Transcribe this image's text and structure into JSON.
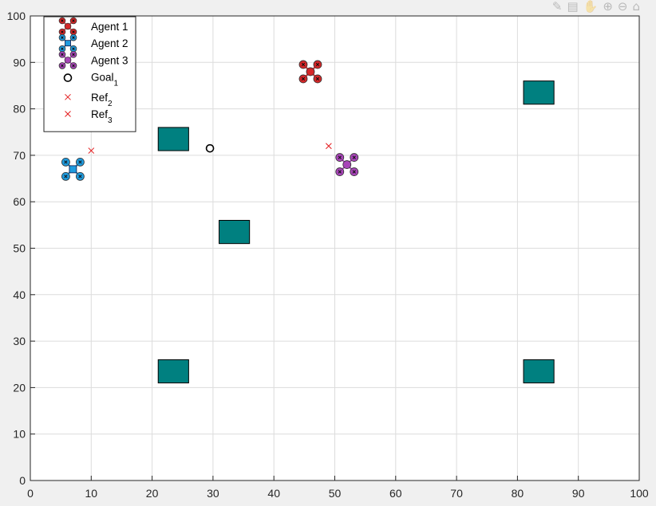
{
  "toolbar": {
    "icons": [
      "brush-icon",
      "data-tips-icon",
      "pan-icon",
      "zoom-in-icon",
      "zoom-out-icon",
      "home-icon"
    ]
  },
  "chart_data": {
    "type": "scatter",
    "title": "",
    "xlabel": "",
    "ylabel": "",
    "xlim": [
      0,
      100
    ],
    "ylim": [
      0,
      100
    ],
    "xticks": [
      0,
      10,
      20,
      30,
      40,
      50,
      60,
      70,
      80,
      90,
      100
    ],
    "yticks": [
      0,
      10,
      20,
      30,
      40,
      50,
      60,
      70,
      80,
      90,
      100
    ],
    "grid": true,
    "legend_location": "top-left",
    "agents": [
      {
        "name": "Agent 1",
        "x": 46,
        "y": 88,
        "color": "#d62728",
        "marker": "quad-x"
      },
      {
        "name": "Agent 2",
        "x": 7,
        "y": 67,
        "color": "#1f9bde",
        "marker": "quad-square"
      },
      {
        "name": "Agent 3",
        "x": 52,
        "y": 68,
        "color": "#a845b8",
        "marker": "quad-x"
      }
    ],
    "goals": [
      {
        "name": "Goal",
        "sub": "1",
        "x": 29.5,
        "y": 71.5
      }
    ],
    "refs": [
      {
        "name": "Ref",
        "sub": "2",
        "x": 10,
        "y": 71
      },
      {
        "name": "Ref",
        "sub": "3",
        "x": 49,
        "y": 72
      }
    ],
    "obstacles": [
      {
        "x0": 21,
        "x1": 26,
        "y0": 21,
        "y1": 26
      },
      {
        "x0": 21,
        "x1": 26,
        "y0": 71,
        "y1": 76
      },
      {
        "x0": 31,
        "x1": 36,
        "y0": 51,
        "y1": 56
      },
      {
        "x0": 81,
        "x1": 86,
        "y0": 81,
        "y1": 86
      },
      {
        "x0": 81,
        "x1": 86,
        "y0": 21,
        "y1": 26
      }
    ],
    "obstacle_color": "#008080",
    "ref_color": "#e31a1c"
  }
}
